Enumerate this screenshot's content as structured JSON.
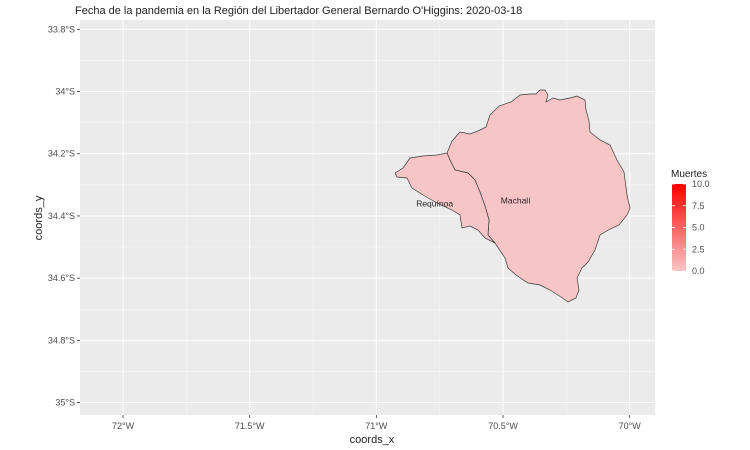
{
  "chart_data": {
    "type": "map",
    "title": "Fecha de la pandemia en la Región del Libertador General Bernardo O'Higgins: 2020-03-18",
    "xlabel": "coords_x",
    "ylabel": "coords_y",
    "x_ticks": [
      "72°W",
      "71.5°W",
      "71°W",
      "70.5°W",
      "70°W"
    ],
    "x_tick_values": [
      -72,
      -71.5,
      -71,
      -70.5,
      -70
    ],
    "y_ticks": [
      "33.8°S",
      "34°S",
      "34.2°S",
      "34.4°S",
      "34.6°S",
      "34.8°S",
      "35°S"
    ],
    "y_tick_values": [
      -33.8,
      -34.0,
      -34.2,
      -34.4,
      -34.6,
      -34.8,
      -35.0
    ],
    "xlim": [
      -72.17,
      -69.9
    ],
    "ylim": [
      -35.04,
      -33.77
    ],
    "grid": true,
    "regions": [
      {
        "name": "Machalí",
        "value": 0,
        "label_lon": -70.45,
        "label_lat": -34.36
      },
      {
        "name": "Requínoa",
        "value": 0,
        "label_lon": -70.77,
        "label_lat": -34.37
      }
    ],
    "legend": {
      "title": "Muertes",
      "position": "right",
      "ticks": [
        "10.0",
        "7.5",
        "5.0",
        "2.5",
        "0.0"
      ],
      "tick_values": [
        10,
        7.5,
        5,
        2.5,
        0
      ],
      "min": 0,
      "max": 10,
      "color_low": "#f7c5c5",
      "color_high": "#ff0000"
    }
  },
  "colors": {
    "panel_bg": "#ebebeb",
    "grid_major": "#ffffff",
    "region_fill": "#f7c5c5",
    "region_stroke": "#3a3a3a"
  }
}
